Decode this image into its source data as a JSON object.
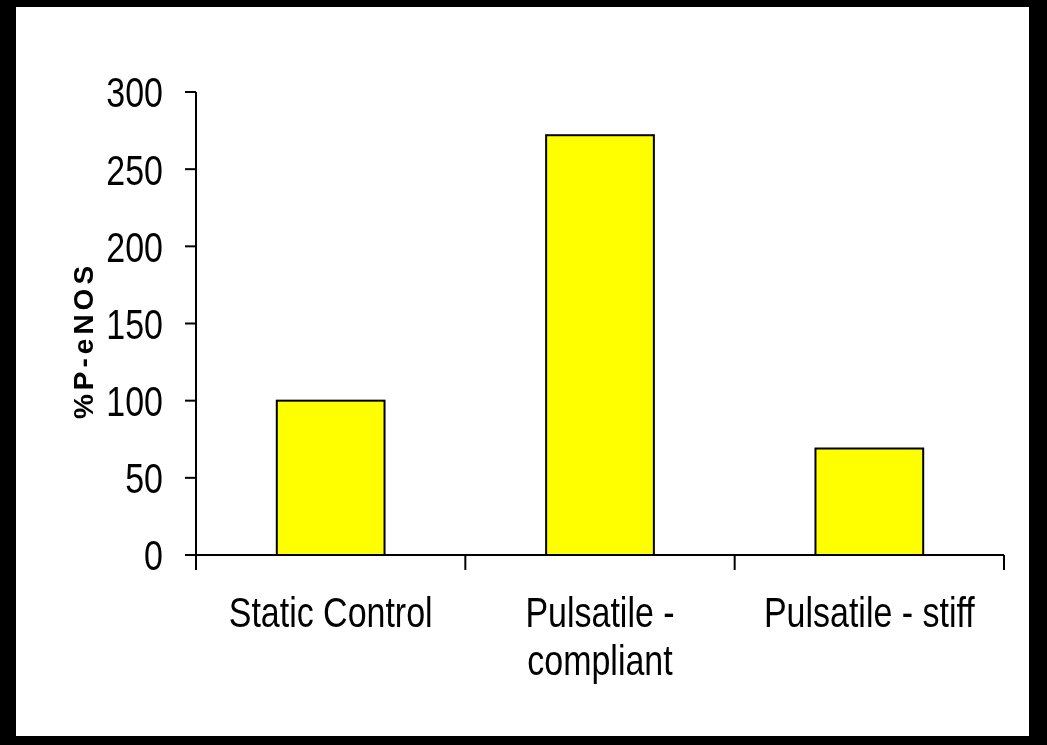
{
  "chart_data": {
    "type": "bar",
    "ylabel": "%P-eNOS",
    "categories": [
      "Static Control",
      "Pulsatile - compliant",
      "Pulsatile - stiff"
    ],
    "values": [
      100,
      272,
      69
    ],
    "color": "#ffff00",
    "ylim": [
      0,
      300
    ],
    "yticks": [
      0,
      50,
      100,
      150,
      200,
      250,
      300
    ]
  }
}
